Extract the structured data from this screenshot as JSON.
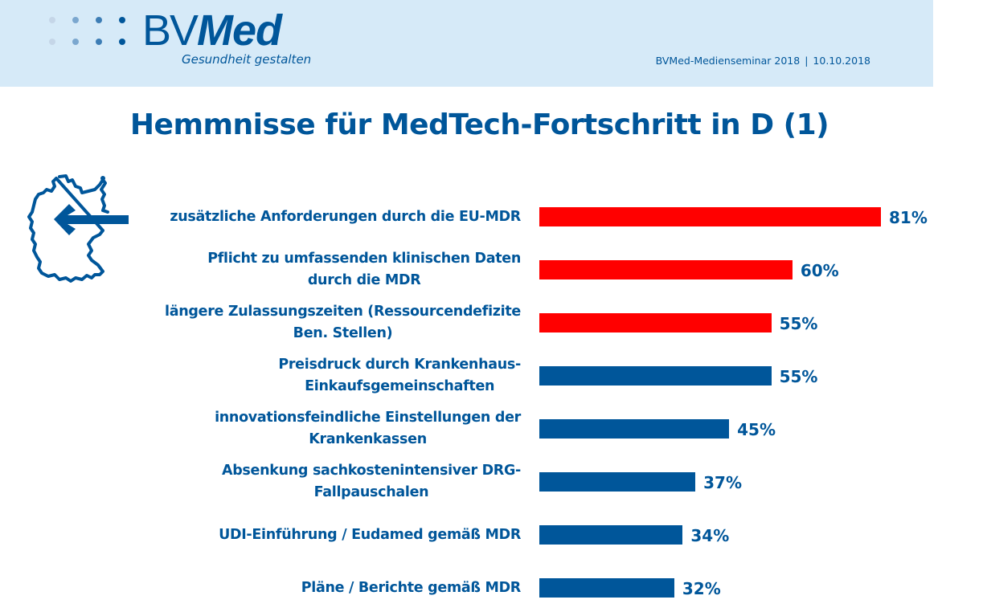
{
  "header": {
    "logo_text_regular": "BV",
    "logo_text_bold": "Med",
    "tagline": "Gesundheit gestalten",
    "event": "BVMed-Medienseminar 2018",
    "separator": "|",
    "date": "10.10.2018",
    "logo_dot_colors": [
      "#c5d6e8",
      "#7ba7cf",
      "#3d7db5",
      "#00569a"
    ]
  },
  "icons": {
    "map": "germany-map-icon",
    "arrow": "arrow-left-icon"
  },
  "colors": {
    "brand": "#00569a",
    "highlight": "#ff0000",
    "header_bg": "#d6eaf8"
  },
  "chart_data": {
    "type": "bar",
    "orientation": "horizontal",
    "title": "Hemmnisse für MedTech-Fortschritt in D (1)",
    "xlabel": "",
    "ylabel": "",
    "unit": "%",
    "xlim": [
      0,
      81
    ],
    "grid": false,
    "legend": "none",
    "categories": [
      "zusätzliche Anforderungen durch die EU-MDR",
      "Pflicht zu umfassenden klinischen Daten\ndurch die MDR",
      "längere Zulassungszeiten (Ressourcendefizite\nBen. Stellen)",
      "Preisdruck durch Krankenhaus-\nEinkaufsgemeinschaften",
      "innovationsfeindliche Einstellungen der\nKrankenkassen",
      "Absenkung sachkostenintensiver DRG-\nFallpauschalen",
      "UDI-Einführung / Eudamed gemäß MDR",
      "Pläne / Berichte gemäß MDR"
    ],
    "values": [
      81,
      60,
      55,
      55,
      45,
      37,
      34,
      32
    ],
    "value_labels": [
      "81%",
      "60%",
      "55%",
      "55%",
      "45%",
      "37%",
      "34%",
      "32%"
    ],
    "bar_colors": [
      "#ff0000",
      "#ff0000",
      "#ff0000",
      "#00569a",
      "#00569a",
      "#00569a",
      "#00569a",
      "#00569a"
    ]
  }
}
